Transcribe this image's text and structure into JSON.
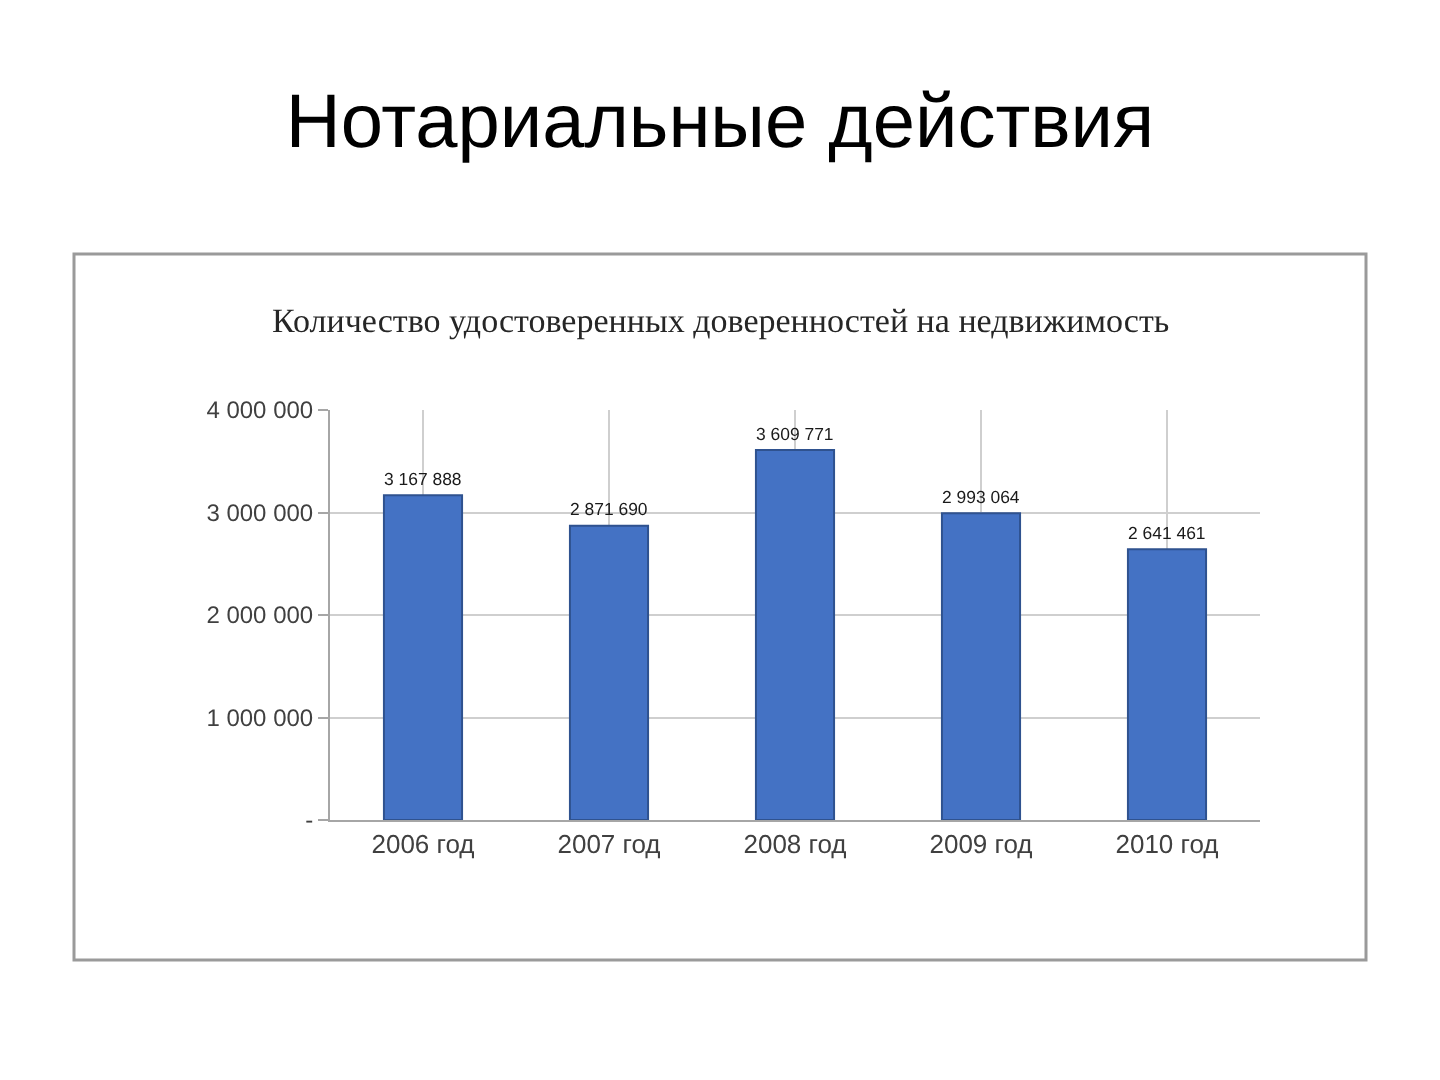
{
  "chart_data": {
    "type": "bar",
    "title": "Нотариальные действия",
    "subtitle": "Количество удостоверенных доверенностей на недвижимость",
    "categories": [
      "2006 год",
      "2007 год",
      "2008 год",
      "2009 год",
      "2010 год"
    ],
    "values": [
      3167888,
      2871690,
      3609771,
      2993064,
      2641461
    ],
    "value_labels": [
      "3 167 888",
      "2 871 690",
      "3 609 771",
      "2 993 064",
      "2 641 461"
    ],
    "color": "#4472c4",
    "ylim": [
      0,
      4000000
    ],
    "yticks": [
      {
        "value": 0,
        "label": "-"
      },
      {
        "value": 1000000,
        "label": "1 000 000"
      },
      {
        "value": 2000000,
        "label": "2 000 000"
      },
      {
        "value": 3000000,
        "label": "3 000 000"
      },
      {
        "value": 4000000,
        "label": "4 000 000"
      }
    ],
    "grid": true
  }
}
